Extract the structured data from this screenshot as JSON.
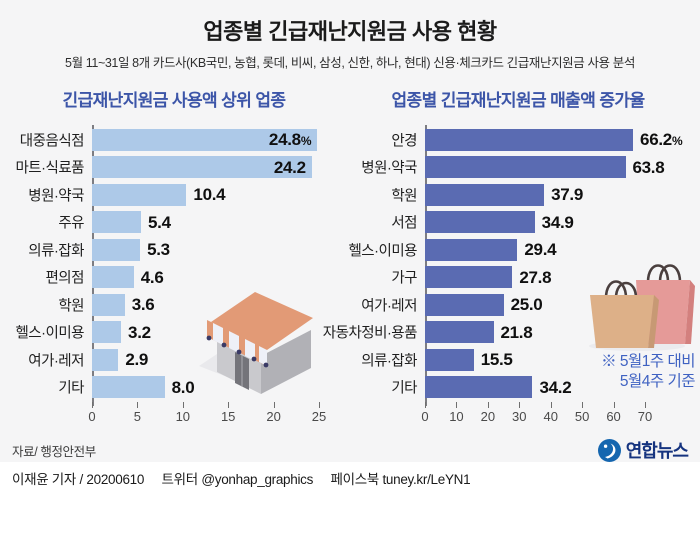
{
  "header": {
    "title": "업종별 긴급재난지원금 사용 현황",
    "subtitle": "5월 11~31일 8개 카드사(KB국민, 농협, 롯데, 비씨, 삼성, 신한, 하나, 현대) 신용·체크카드 긴급재난지원금 사용 분석"
  },
  "chart_data": [
    {
      "type": "bar",
      "orientation": "horizontal",
      "title": "긴급재난지원금 사용액 상위 업종",
      "categories": [
        "대중음식점",
        "마트·식료품",
        "병원·약국",
        "주유",
        "의류·잡화",
        "편의점",
        "학원",
        "헬스·이미용",
        "여가·레저",
        "기타"
      ],
      "values": [
        24.8,
        24.2,
        10.4,
        5.4,
        5.3,
        4.6,
        3.6,
        3.2,
        2.9,
        8.0
      ],
      "value_labels": [
        "24.8%",
        "24.2",
        "10.4",
        "5.4",
        "5.3",
        "4.6",
        "3.6",
        "3.2",
        "2.9",
        "8.0"
      ],
      "unit": "%",
      "xlim": [
        0,
        25
      ],
      "x_ticks": [
        0,
        5,
        10,
        15,
        20,
        25
      ],
      "bar_color": "#adc9e8",
      "legend": "none",
      "grid": "off"
    },
    {
      "type": "bar",
      "orientation": "horizontal",
      "title": "업종별 긴급재난지원금 매출액 증가율",
      "categories": [
        "안경",
        "병원·약국",
        "학원",
        "서점",
        "헬스·이미용",
        "가구",
        "여가·레저",
        "자동차정비·용품",
        "의류·잡화",
        "기타"
      ],
      "values": [
        66.2,
        63.8,
        37.9,
        34.9,
        29.4,
        27.8,
        25.0,
        21.8,
        15.5,
        34.2
      ],
      "value_labels": [
        "66.2%",
        "63.8",
        "37.9",
        "34.9",
        "29.4",
        "27.8",
        "25.0",
        "21.8",
        "15.5",
        "34.2"
      ],
      "unit": "%",
      "xlim": [
        0,
        70
      ],
      "x_ticks": [
        0,
        10,
        20,
        30,
        40,
        50,
        60,
        70
      ],
      "bar_color": "#5a6bb2",
      "note": "※ 5월1주 대비\n5월4주 기준",
      "legend": "none",
      "grid": "off"
    }
  ],
  "source": "자료/ 행정안전부",
  "footer": {
    "credit": "이재윤 기자 / 20200610",
    "twitter": "트위터 @yonhap_graphics",
    "facebook": "페이스북 tuney.kr/LeYN1"
  },
  "logo": {
    "text": "연합뉴스"
  },
  "colors": {
    "content_background": "#f5f5f6",
    "chart_title_blue": "#3c55a8",
    "note_blue": "#3f62c2",
    "left_bar": "#adc9e8",
    "right_bar": "#5a6bb2",
    "logo_blue": "#1566af"
  }
}
